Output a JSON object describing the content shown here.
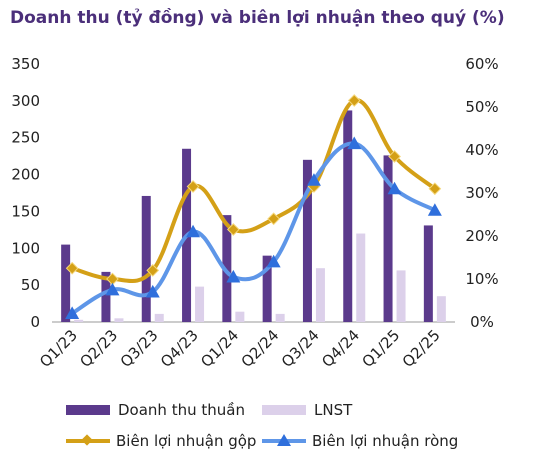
{
  "chart_data": {
    "type": "bar+line",
    "title": "Doanh thu (tỷ đồng) và biên lợi nhuận theo quý (%)",
    "categories": [
      "Q1/23",
      "Q2/23",
      "Q3/23",
      "Q4/23",
      "Q1/24",
      "Q2/24",
      "Q3/24",
      "Q4/24",
      "Q1/25",
      "Q2/25"
    ],
    "y_left": {
      "min": 0,
      "max": 350,
      "ticks": [
        "0",
        "50",
        "100",
        "150",
        "200",
        "250",
        "300",
        "350"
      ]
    },
    "y_right": {
      "min": 0,
      "max": 60,
      "ticks": [
        "0%",
        "10%",
        "20%",
        "30%",
        "40%",
        "50%",
        "60%"
      ]
    },
    "series": [
      {
        "name": "Doanh thu thuần",
        "kind": "bar",
        "axis": "left",
        "color": "#5b3a8c",
        "values": [
          105,
          68,
          171,
          235,
          145,
          90,
          220,
          287,
          226,
          131
        ]
      },
      {
        "name": "LNST",
        "kind": "bar",
        "axis": "left",
        "color": "#dcd0ea",
        "values": [
          3,
          5,
          11,
          48,
          14,
          11,
          73,
          120,
          70,
          35
        ]
      },
      {
        "name": "Biên lợi nhuận gộp",
        "kind": "line",
        "axis": "right",
        "color": "#d4a017",
        "values": [
          12.5,
          10,
          12,
          31.5,
          21.5,
          24,
          31.5,
          51.5,
          38.5,
          31
        ]
      },
      {
        "name": "Biên lợi nhuận ròng",
        "kind": "line",
        "axis": "right",
        "color": "#5e96e8",
        "values": [
          2,
          7.5,
          7,
          21,
          10.5,
          14,
          33,
          41.5,
          31,
          26
        ]
      }
    ],
    "legend": [
      "Doanh thu thuần",
      "LNST",
      "Biên lợi nhuận gộp",
      "Biên lợi nhuận ròng"
    ]
  }
}
